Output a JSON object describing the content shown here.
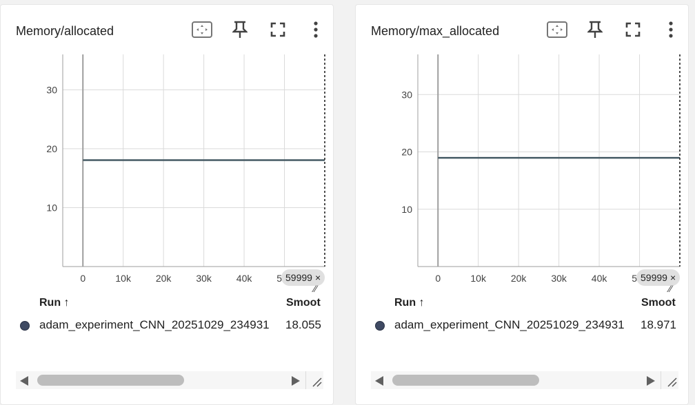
{
  "cards": [
    {
      "title": "Memory/allocated",
      "hover_step": "59999",
      "hover_close": "×",
      "table": {
        "run_header": "Run ↑",
        "smooth_header": "Smoot"
      },
      "run": {
        "name": "adam_experiment_CNN_20251029_234931",
        "value": "18.055",
        "color": "#3f4a63"
      },
      "chart_data": {
        "type": "line",
        "title": "Memory/allocated",
        "xlabel": "",
        "ylabel": "",
        "xlim": [
          -5000,
          60000
        ],
        "ylim": [
          0,
          36
        ],
        "x_ticks": [
          "0",
          "10k",
          "20k",
          "30k",
          "40k",
          "50k"
        ],
        "y_ticks": [
          "10",
          "20",
          "30"
        ],
        "grid": true,
        "series": [
          {
            "x": [
              0,
              59999
            ],
            "y": [
              18.055,
              18.055
            ],
            "color": "#455a64"
          }
        ]
      }
    },
    {
      "title": "Memory/max_allocated",
      "hover_step": "59999",
      "hover_close": "×",
      "table": {
        "run_header": "Run ↑",
        "smooth_header": "Smoot"
      },
      "run": {
        "name": "adam_experiment_CNN_20251029_234931",
        "value": "18.971",
        "color": "#3f4a63"
      },
      "chart_data": {
        "type": "line",
        "title": "Memory/max_allocated",
        "xlabel": "",
        "ylabel": "",
        "xlim": [
          -5000,
          60000
        ],
        "ylim": [
          0,
          37
        ],
        "x_ticks": [
          "0",
          "10k",
          "20k",
          "30k",
          "40k",
          "50k"
        ],
        "y_ticks": [
          "10",
          "20",
          "30"
        ],
        "grid": true,
        "series": [
          {
            "x": [
              0,
              59999
            ],
            "y": [
              18.971,
              18.971
            ],
            "color": "#455a64"
          }
        ]
      }
    }
  ],
  "icons": {
    "fit": "fit-domain-icon",
    "pin": "pin-icon",
    "fullscreen": "fullscreen-icon",
    "menu": "more-vert-icon"
  }
}
